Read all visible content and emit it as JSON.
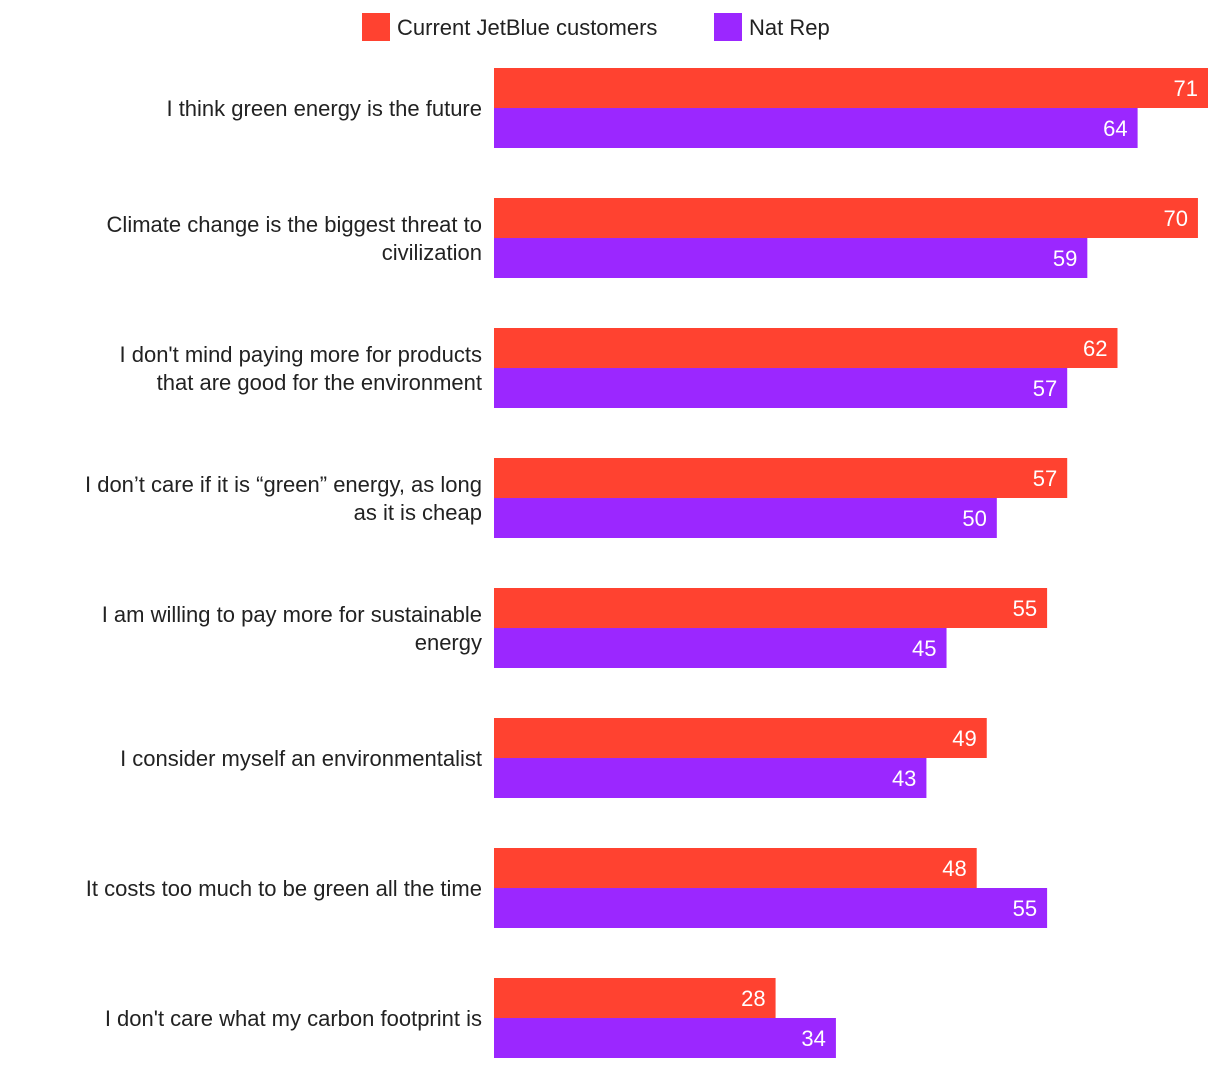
{
  "chart_data": {
    "type": "bar",
    "orientation": "horizontal",
    "categories": [
      [
        "I think green energy is the future"
      ],
      [
        "Climate change is the biggest threat to",
        "civilization"
      ],
      [
        "I don't mind paying more for products",
        "that are good for the environment"
      ],
      [
        "I don’t care if it is “green” energy, as long",
        "as it is cheap"
      ],
      [
        "I am willing to pay more for sustainable",
        "energy"
      ],
      [
        "I consider myself an environmentalist"
      ],
      [
        "It costs too much to be green all the time"
      ],
      [
        "I don't care what my carbon footprint is"
      ]
    ],
    "series": [
      {
        "name": "Current JetBlue customers",
        "color": "#FF4230",
        "values": [
          71,
          70,
          62,
          57,
          55,
          49,
          48,
          28
        ]
      },
      {
        "name": "Nat Rep",
        "color": "#9B27FF",
        "values": [
          64,
          59,
          57,
          50,
          45,
          43,
          55,
          34
        ]
      }
    ],
    "xlim": [
      0,
      71
    ],
    "data_labels": true,
    "grid": false,
    "legend_position": "top"
  }
}
